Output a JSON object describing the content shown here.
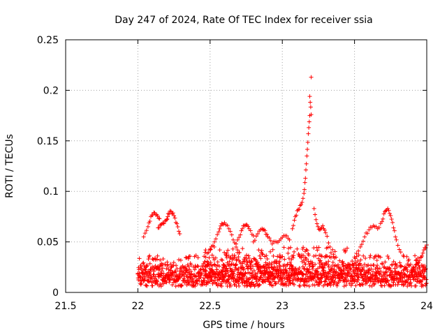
{
  "chart_data": {
    "type": "scatter",
    "title": "Day 247 of 2024, Rate Of TEC Index for receiver ssia",
    "xlabel": "GPS time / hours",
    "ylabel": "ROTI / TECUs",
    "xlim": [
      21.5,
      24
    ],
    "ylim": [
      0,
      0.25
    ],
    "xticks": [
      "21.5",
      "22",
      "22.5",
      "23",
      "23.5",
      "24"
    ],
    "yticks": [
      "0",
      "0.05",
      "0.1",
      "0.15",
      "0.2",
      "0.25"
    ],
    "grid": true,
    "marker": "plus",
    "color": "#ff0000",
    "series": [
      {
        "name": "ROTI",
        "description": "Dense band of receiver ROTI samples from 22.0 to 24.0 h, mostly 0.005-0.04 TECU/s, with elevated arcs and a peak near 23.2 h",
        "band": {
          "x_start": 22.0,
          "x_end": 24.0,
          "step": 0.0035
        },
        "arcs": [
          {
            "x": [
              22.04,
              22.07,
              22.09,
              22.11,
              22.13,
              22.15
            ],
            "y": [
              0.055,
              0.065,
              0.075,
              0.079,
              0.077,
              0.073
            ]
          },
          {
            "x": [
              22.14,
              22.16,
              22.18,
              22.2,
              22.21,
              22.23,
              22.25,
              22.27,
              22.29
            ],
            "y": [
              0.064,
              0.067,
              0.068,
              0.072,
              0.078,
              0.08,
              0.076,
              0.068,
              0.058
            ]
          },
          {
            "x": [
              22.47,
              22.5,
              22.53,
              22.56,
              22.58,
              22.6,
              22.63,
              22.66,
              22.69
            ],
            "y": [
              0.035,
              0.042,
              0.05,
              0.06,
              0.068,
              0.069,
              0.063,
              0.052,
              0.042
            ]
          },
          {
            "x": [
              22.68,
              22.71,
              22.73,
              22.75,
              22.77,
              22.8
            ],
            "y": [
              0.048,
              0.057,
              0.066,
              0.067,
              0.063,
              0.056
            ]
          },
          {
            "x": [
              22.8,
              22.83,
              22.86,
              22.88,
              22.9,
              22.93,
              22.96,
              22.99,
              23.02,
              23.05
            ],
            "y": [
              0.05,
              0.058,
              0.063,
              0.061,
              0.055,
              0.048,
              0.05,
              0.053,
              0.056,
              0.052
            ]
          },
          {
            "x": [
              23.07,
              23.09,
              23.11,
              23.13,
              23.15,
              23.16,
              23.17,
              23.18,
              23.19,
              23.2,
              23.22,
              23.24,
              23.26,
              23.28,
              23.3,
              23.33
            ],
            "y": [
              0.063,
              0.075,
              0.082,
              0.087,
              0.098,
              0.113,
              0.135,
              0.157,
              0.175,
              0.213,
              0.083,
              0.068,
              0.062,
              0.066,
              0.059,
              0.045
            ]
          },
          {
            "x": [
              23.19,
              23.2
            ],
            "y": [
              0.194,
              0.176
            ]
          },
          {
            "x": [
              23.45,
              23.5,
              23.54,
              23.57,
              23.6,
              23.63,
              23.66,
              23.69,
              23.71,
              23.73,
              23.75,
              23.77,
              23.79,
              23.82
            ],
            "y": [
              0.025,
              0.035,
              0.045,
              0.055,
              0.062,
              0.066,
              0.063,
              0.07,
              0.08,
              0.083,
              0.076,
              0.064,
              0.052,
              0.04
            ]
          },
          {
            "x": [
              23.9,
              23.93,
              23.96,
              23.98,
              24.0
            ],
            "y": [
              0.022,
              0.028,
              0.035,
              0.042,
              0.047
            ]
          }
        ]
      }
    ]
  }
}
